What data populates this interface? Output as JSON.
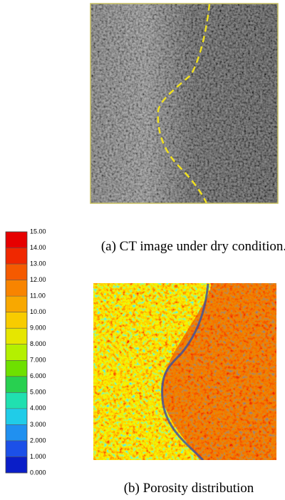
{
  "figure": {
    "panel_a": {
      "caption": "(a) CT image under dry condition."
    },
    "panel_b": {
      "caption": "(b) Porosity distribution"
    },
    "colorbar": {
      "ticks": [
        {
          "value": 15,
          "label": "15.00"
        },
        {
          "value": 14,
          "label": "14.00"
        },
        {
          "value": 13,
          "label": "13.00"
        },
        {
          "value": 12,
          "label": "12.00"
        },
        {
          "value": 11,
          "label": "11.00"
        },
        {
          "value": 10,
          "label": "10.00"
        },
        {
          "value": 9,
          "label": "9.000"
        },
        {
          "value": 8,
          "label": "8.000"
        },
        {
          "value": 7,
          "label": "7.000"
        },
        {
          "value": 6,
          "label": "6.000"
        },
        {
          "value": 5,
          "label": "5.000"
        },
        {
          "value": 4,
          "label": "4.000"
        },
        {
          "value": 3,
          "label": "3.000"
        },
        {
          "value": 2,
          "label": "2.000"
        },
        {
          "value": 1,
          "label": "1.000"
        },
        {
          "value": 0,
          "label": "0.000"
        }
      ],
      "colors": [
        "#e60000",
        "#f02800",
        "#f55a00",
        "#f88400",
        "#f8a800",
        "#f8cc00",
        "#e6e600",
        "#b4f000",
        "#6ee000",
        "#28d050",
        "#20e0b0",
        "#20cce8",
        "#2090f0",
        "#1c50e8",
        "#0a1ec8"
      ]
    }
  }
}
